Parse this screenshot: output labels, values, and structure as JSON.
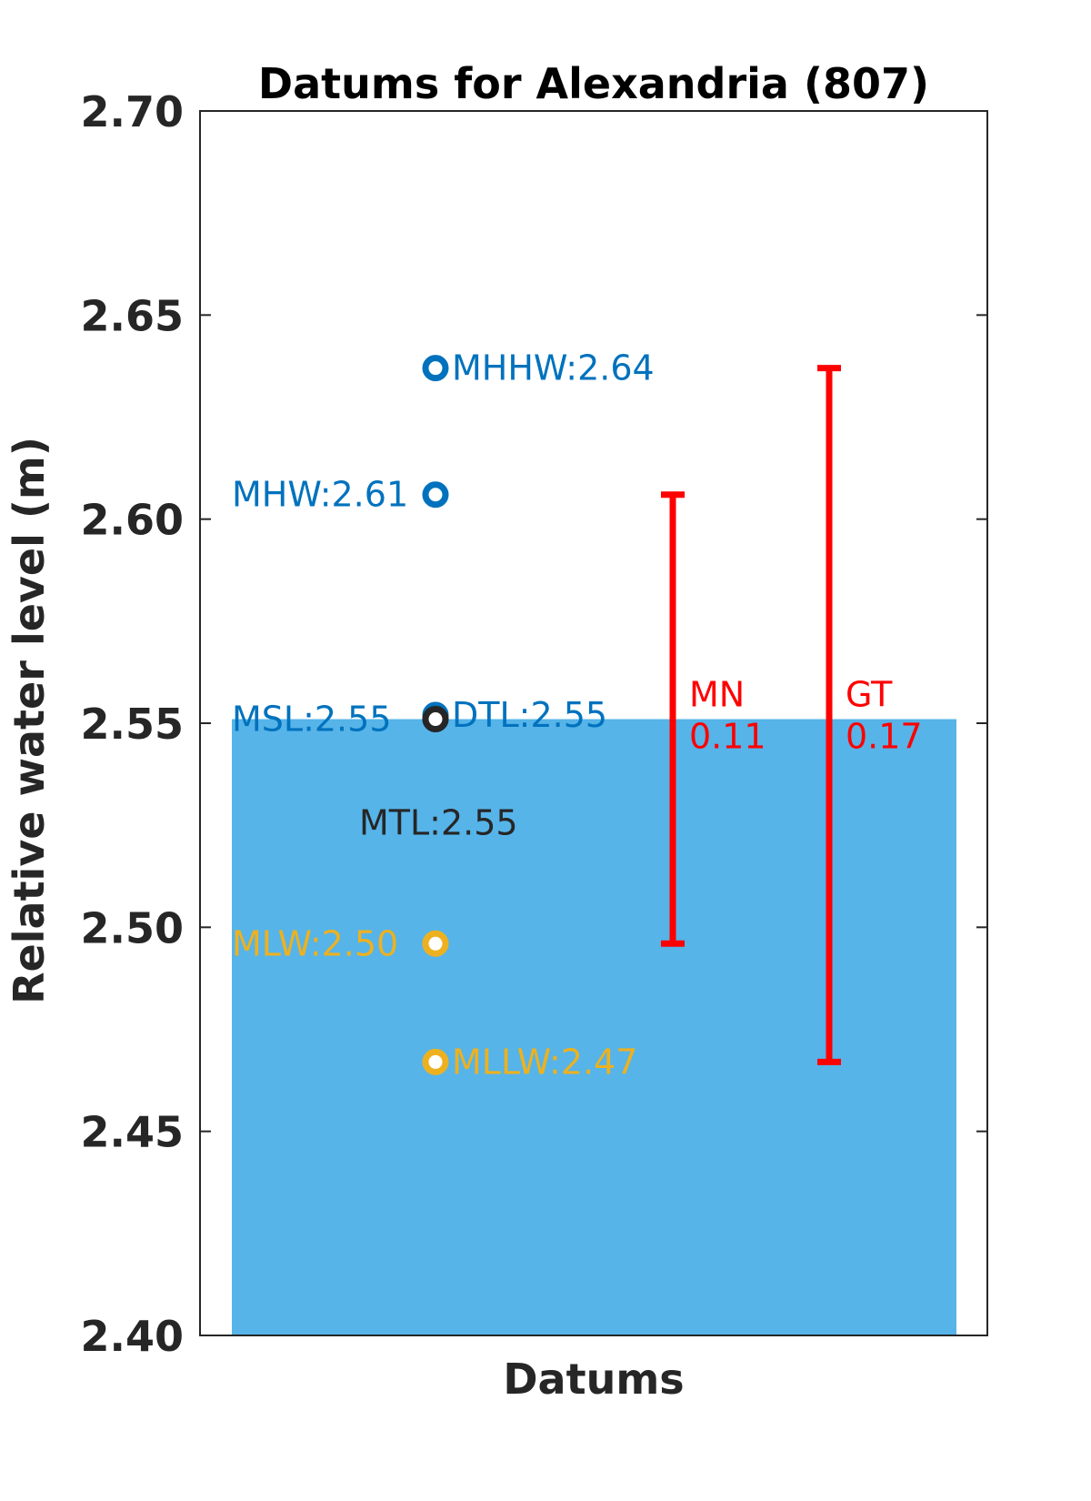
{
  "chart_data": {
    "type": "scatter",
    "title": "Datums for Alexandria (807)",
    "xlabel": "Datums",
    "ylabel": "Relative water level (m)",
    "ylim": [
      2.4,
      2.7
    ],
    "yticks": [
      "2.40",
      "2.45",
      "2.50",
      "2.55",
      "2.60",
      "2.65",
      "2.70"
    ],
    "grid": false,
    "colors": {
      "high": "#0072BD",
      "low": "#EDB120",
      "mid": "#262626",
      "range": "#FF0000",
      "fill": "#56B4E9"
    },
    "fill_level": 2.551,
    "datums": [
      {
        "label": "MHHW:2.64",
        "value": 2.637,
        "group": "high",
        "side": "right"
      },
      {
        "label": "MHW:2.61",
        "value": 2.606,
        "group": "high",
        "side": "left"
      },
      {
        "label": "DTL:2.55",
        "value": 2.552,
        "group": "high",
        "side": "right"
      },
      {
        "label": "MSL:2.55",
        "value": 2.551,
        "group": "high",
        "side": "left"
      },
      {
        "label": "MTL:2.55",
        "value": 2.551,
        "group": "mid",
        "side": "below"
      },
      {
        "label": "MLW:2.50",
        "value": 2.496,
        "group": "low",
        "side": "left"
      },
      {
        "label": "MLLW:2.47",
        "value": 2.467,
        "group": "low",
        "side": "right"
      }
    ],
    "ranges": [
      {
        "name": "MN",
        "value_label": "0.11",
        "low": 2.496,
        "high": 2.606
      },
      {
        "name": "GT",
        "value_label": "0.17",
        "low": 2.467,
        "high": 2.637
      }
    ]
  }
}
